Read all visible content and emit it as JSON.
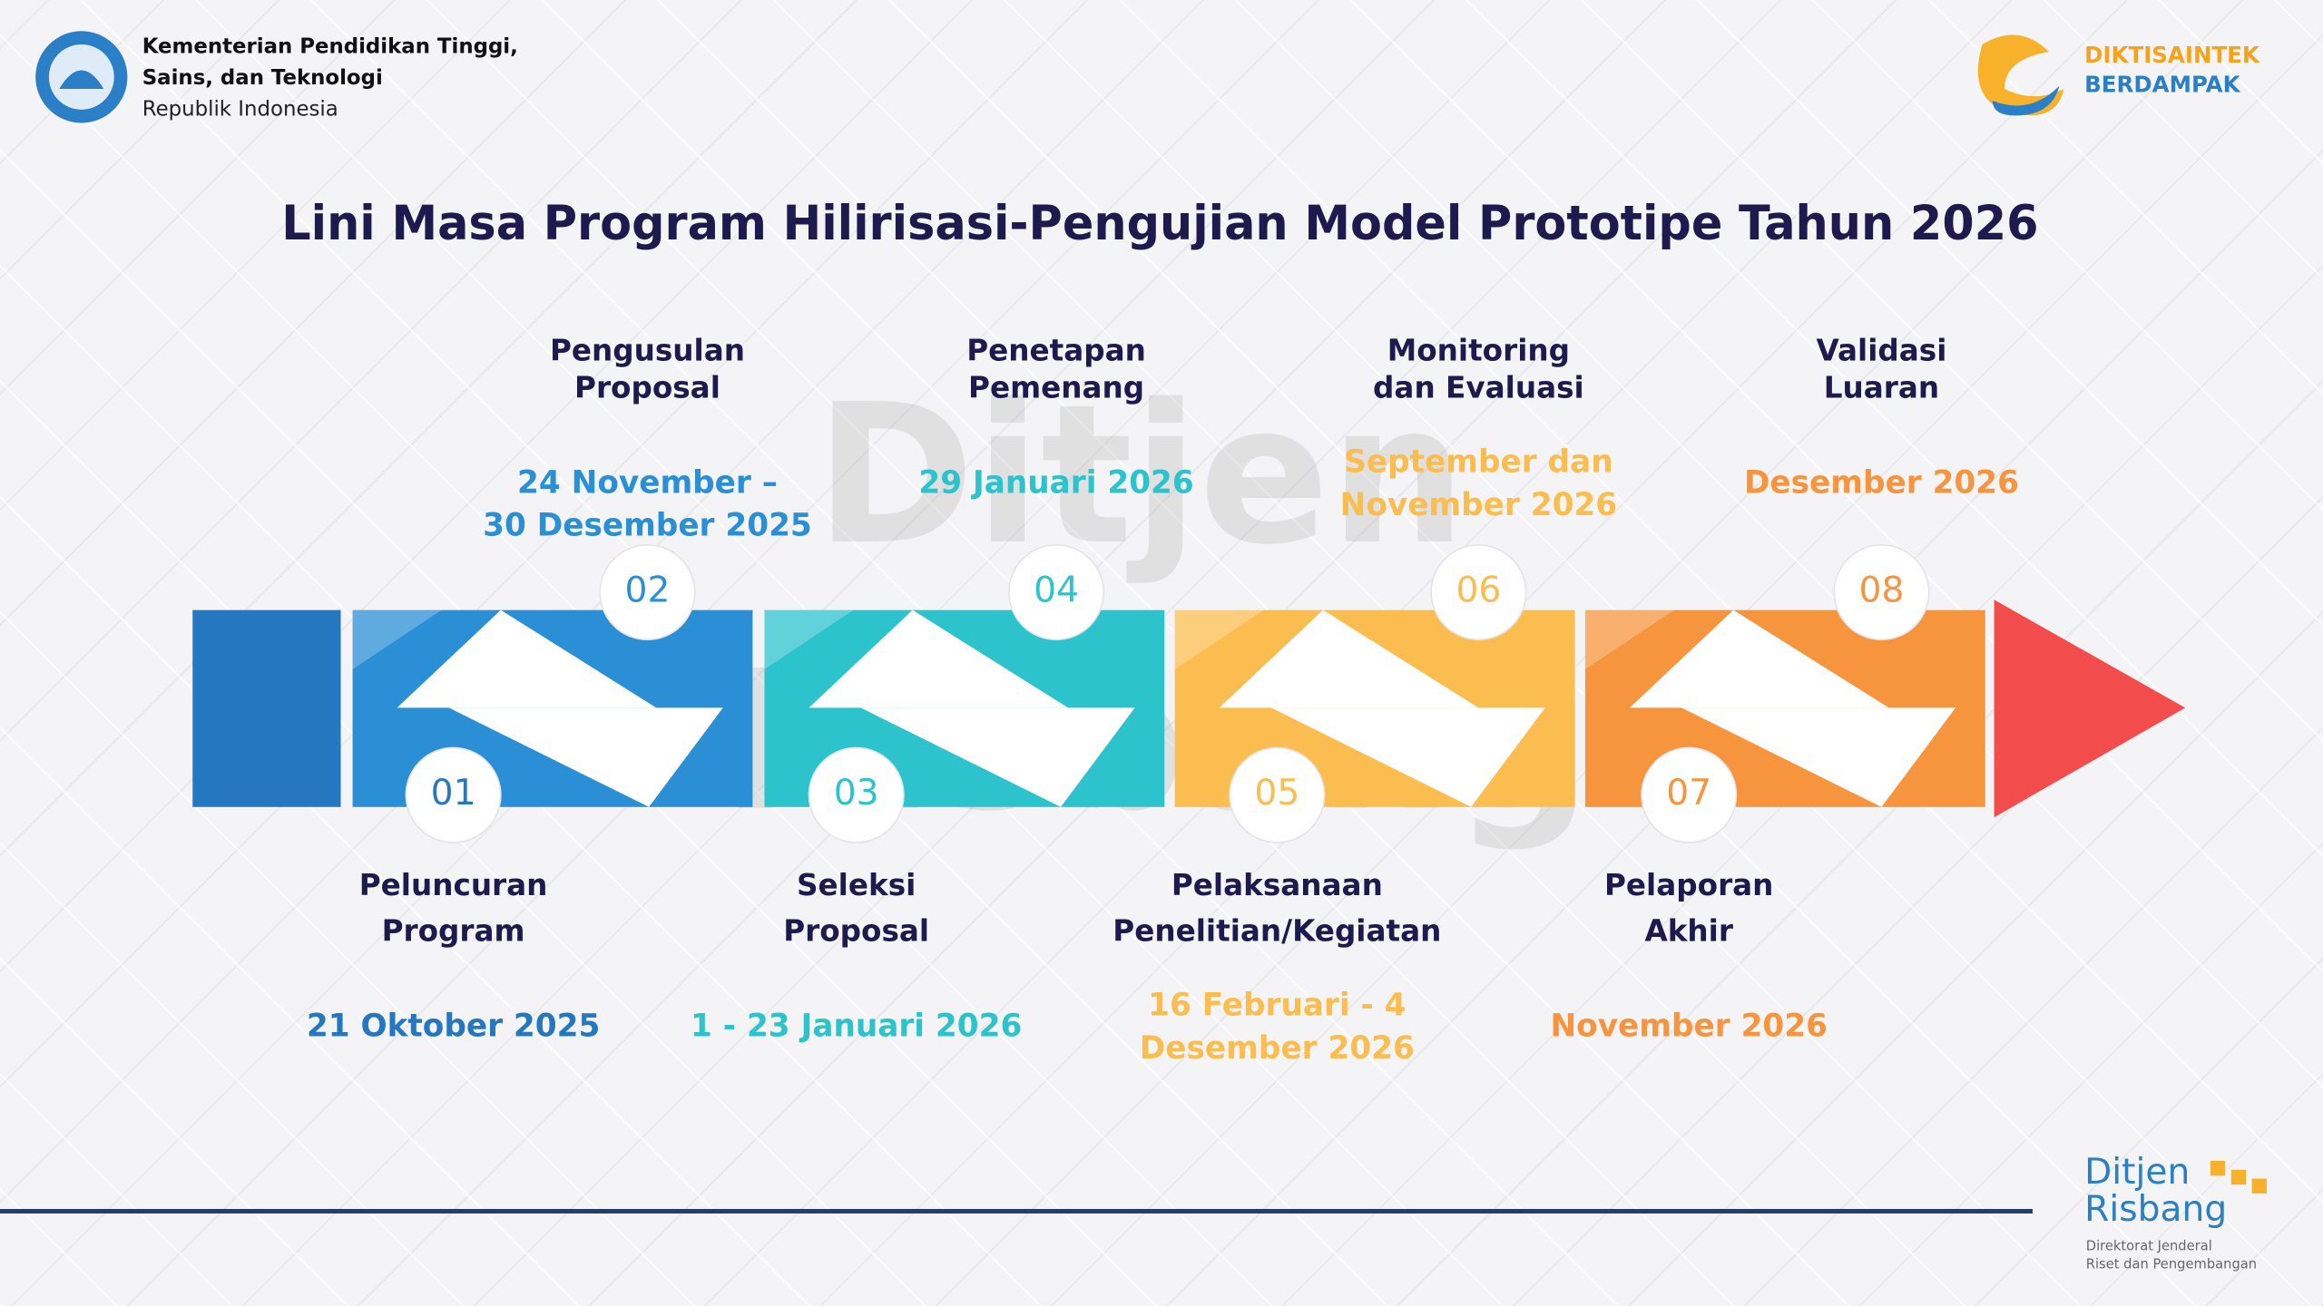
{
  "header": {
    "ministry": [
      "Kementerian Pendidikan Tinggi,",
      "Sains, dan Teknologi"
    ],
    "country": "Republik Indonesia",
    "brand": [
      "DIKTISAINTEK",
      "BERDAMPAK"
    ]
  },
  "title": "Lini Masa Program Hilirisasi-Pengujian Model Prototipe Tahun 2026",
  "watermark": [
    "Ditjen",
    "Risbang"
  ],
  "steps": [
    {
      "number": "01",
      "label": [
        "Peluncuran",
        "Program"
      ],
      "date": [
        "21 Oktober 2025"
      ],
      "color": "#2577c0"
    },
    {
      "number": "02",
      "label": [
        "Pengusulan",
        "Proposal"
      ],
      "date": [
        "24 November –",
        "30 Desember 2025"
      ],
      "color": "#2a8fd4"
    },
    {
      "number": "03",
      "label": [
        "Seleksi",
        "Proposal"
      ],
      "date": [
        "1 - 23 Januari 2026"
      ],
      "color": "#2cc3cc"
    },
    {
      "number": "04",
      "label": [
        "Penetapan",
        "Pemenang"
      ],
      "date": [
        "29 Januari 2026"
      ],
      "color": "#2cc3cc"
    },
    {
      "number": "05",
      "label": [
        "Pelaksanaan",
        "Penelitian/Kegiatan"
      ],
      "date": [
        "16 Februari - 4",
        "Desember 2026"
      ],
      "color": "#fbbd4f"
    },
    {
      "number": "06",
      "label": [
        "Monitoring",
        "dan Evaluasi"
      ],
      "date": [
        "September dan",
        "November 2026"
      ],
      "color": "#fbbd4f"
    },
    {
      "number": "07",
      "label": [
        "Pelaporan",
        "Akhir"
      ],
      "date": [
        "November 2026"
      ],
      "color": "#f7953e"
    },
    {
      "number": "08",
      "label": [
        "Validasi",
        "Luaran"
      ],
      "date": [
        "Desember 2026"
      ],
      "color": "#f7953e"
    }
  ],
  "footer": {
    "logo": [
      "Ditjen",
      "Risbang"
    ],
    "subtitle": [
      "Direktorat Jenderal",
      "Riset dan Pengembangan"
    ]
  }
}
